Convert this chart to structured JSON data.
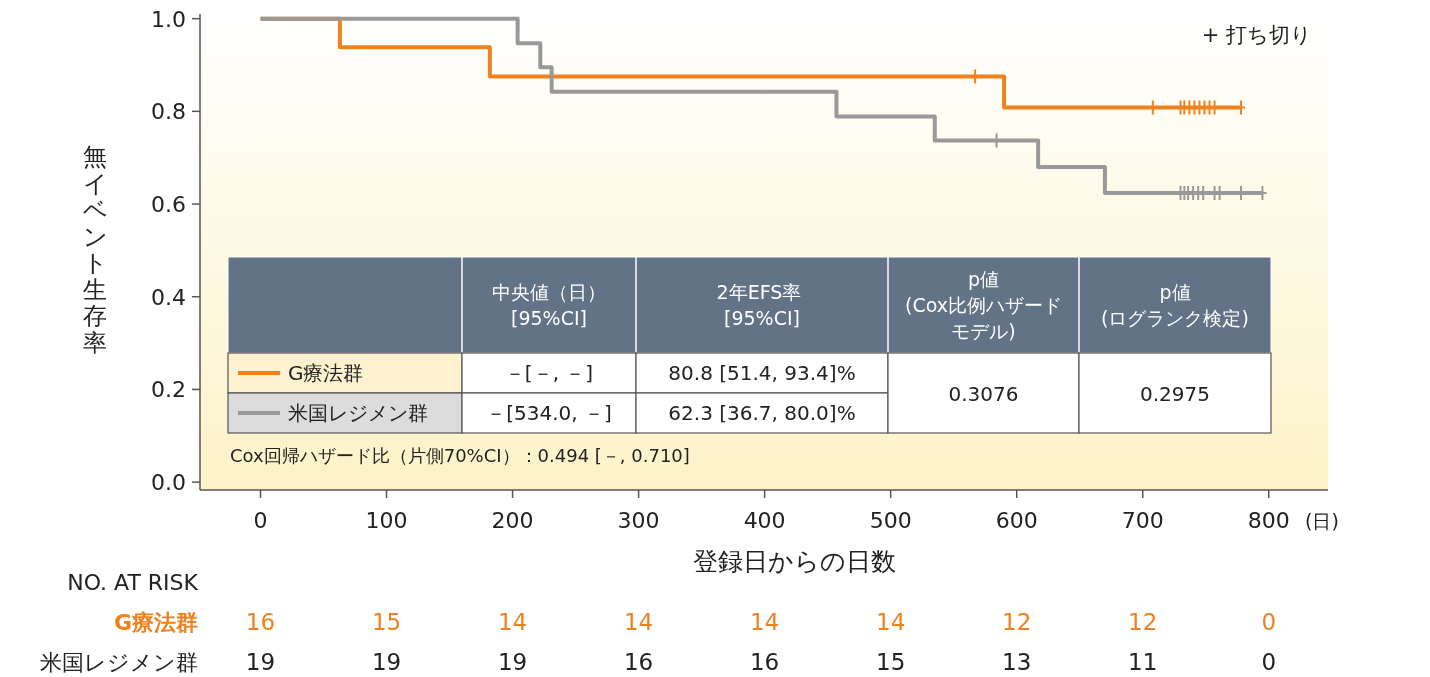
{
  "chart_data": {
    "type": "step",
    "xlabel": "登録日からの日数",
    "ylabel": "無イベント生存率",
    "xlim": [
      -48,
      847
    ],
    "xticks": [
      0,
      100,
      200,
      300,
      400,
      500,
      600,
      700,
      800
    ],
    "ylim": [
      -0.017,
      1.01
    ],
    "yticks": [
      {
        "value": 0,
        "label": "0.0"
      },
      {
        "value": 0.2,
        "label": "0.2"
      },
      {
        "value": 0.4,
        "label": "0.4"
      },
      {
        "value": 0.6,
        "label": "0.6"
      },
      {
        "value": 0.8,
        "label": "0.8"
      },
      {
        "value": 1,
        "label": "1.0"
      }
    ],
    "grid": false,
    "legend": "bottom left",
    "series": [
      {
        "name": "G療法群",
        "color": "#f0821e",
        "x": [
          0,
          63,
          182,
          590,
          778
        ],
        "values": [
          1,
          0.938,
          0.875,
          0.808,
          0.808
        ]
      },
      {
        "name": "米国レジメン群",
        "color": "#999999",
        "x": [
          0,
          204,
          222,
          231,
          457,
          535,
          617,
          670,
          795
        ],
        "values": [
          1,
          0.947,
          0.895,
          0.842,
          0.789,
          0.737,
          0.68,
          0.624,
          0.624
        ]
      },
      {
        "type": "scatter",
        "marker": "cross",
        "color": "#f0821e",
        "x": [
          567,
          708,
          730,
          733,
          737,
          741,
          745,
          749,
          753,
          757,
          778
        ],
        "values": [
          0.875,
          0.808,
          0.808,
          0.808,
          0.808,
          0.808,
          0.808,
          0.808,
          0.808,
          0.808,
          0.808
        ]
      },
      {
        "type": "scatter",
        "marker": "cross",
        "color": "#999999",
        "x": [
          584,
          730,
          733,
          736,
          740,
          744,
          748,
          757,
          761,
          778,
          795
        ],
        "values": [
          0.737,
          0.624,
          0.624,
          0.624,
          0.624,
          0.624,
          0.624,
          0.624,
          0.624,
          0.624,
          0.624
        ]
      }
    ],
    "annotations": [
      "+ 打ち切り",
      "(日)",
      "中央値（日）[95%CI]",
      "2年EFS率 [95%CI]",
      "p値(Cox比例ハザードモデル)",
      "p値(ログランク検定)",
      "－[－, －]",
      "80.8 [51.4, 93.4]%",
      "－[534.0, －]",
      "62.3 [36.7, 80.0]%",
      "0.3076",
      "0.2975",
      "Cox回帰ハザード比（片側70%CI）：0.494 [－, 0.710]",
      "NO. AT RISK",
      "16",
      "15",
      "14",
      "14",
      "14",
      "14",
      "12",
      "12",
      "0",
      "19",
      "19",
      "19",
      "16",
      "16",
      "15",
      "13",
      "11",
      "0"
    ]
  }
}
